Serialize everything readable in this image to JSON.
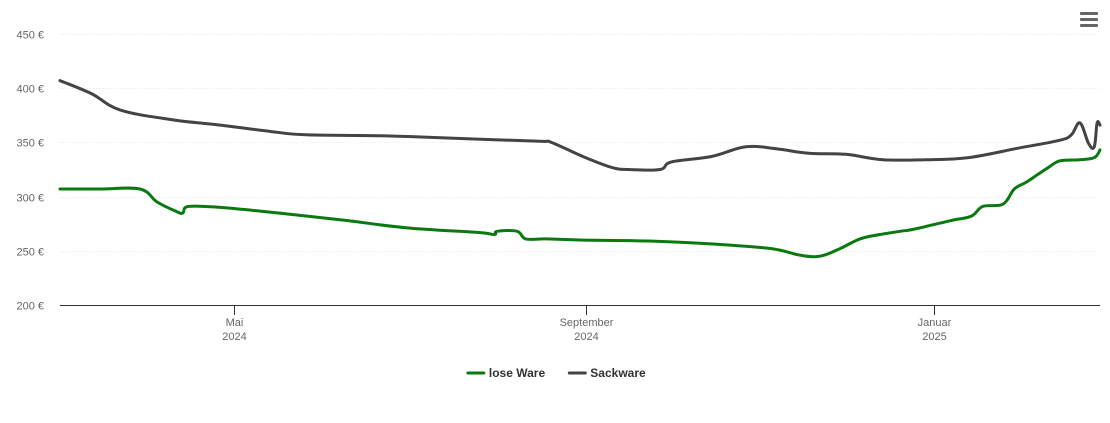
{
  "chart_data": {
    "type": "line",
    "title": "",
    "xlabel": "",
    "ylabel": "",
    "x_range": [
      "2024-03-01",
      "2025-02-28"
    ],
    "ylim": [
      200,
      450
    ],
    "y_ticks": [
      "200 €",
      "250 €",
      "300 €",
      "350 €",
      "400 €",
      "450 €"
    ],
    "y_tick_values": [
      200,
      250,
      300,
      350,
      400,
      450
    ],
    "x_ticks": [
      {
        "date": "2024-05-01",
        "line1": "Mai",
        "line2": "2024"
      },
      {
        "date": "2024-09-01",
        "line1": "September",
        "line2": "2024"
      },
      {
        "date": "2025-01-01",
        "line1": "Januar",
        "line2": "2025"
      }
    ],
    "grid": true,
    "legend_position": "bottom-center",
    "series": [
      {
        "name": "lose Ware",
        "color": "#0a7a10",
        "points": [
          [
            "2024-03-01",
            307
          ],
          [
            "2024-03-15",
            307
          ],
          [
            "2024-03-29",
            307
          ],
          [
            "2024-04-04",
            295
          ],
          [
            "2024-04-11",
            286
          ],
          [
            "2024-04-13",
            285
          ],
          [
            "2024-04-15",
            291
          ],
          [
            "2024-04-26",
            290
          ],
          [
            "2024-05-16",
            285
          ],
          [
            "2024-06-09",
            278
          ],
          [
            "2024-07-01",
            271
          ],
          [
            "2024-07-25",
            267
          ],
          [
            "2024-07-31",
            265
          ],
          [
            "2024-08-01",
            268
          ],
          [
            "2024-08-08",
            268
          ],
          [
            "2024-08-11",
            261
          ],
          [
            "2024-08-18",
            261
          ],
          [
            "2024-08-30",
            260
          ],
          [
            "2024-09-23",
            259
          ],
          [
            "2024-10-17",
            256
          ],
          [
            "2024-11-05",
            252
          ],
          [
            "2024-11-15",
            246
          ],
          [
            "2024-11-22",
            245
          ],
          [
            "2024-11-29",
            252
          ],
          [
            "2024-12-06",
            261
          ],
          [
            "2024-12-13",
            265
          ],
          [
            "2024-12-20",
            268
          ],
          [
            "2024-12-25",
            270
          ],
          [
            "2025-01-07",
            278
          ],
          [
            "2025-01-14",
            282
          ],
          [
            "2025-01-18",
            291
          ],
          [
            "2025-01-25",
            293
          ],
          [
            "2025-01-29",
            307
          ],
          [
            "2025-02-02",
            313
          ],
          [
            "2025-02-06",
            320
          ],
          [
            "2025-02-10",
            327
          ],
          [
            "2025-02-14",
            333
          ],
          [
            "2025-02-21",
            334
          ],
          [
            "2025-02-26",
            336
          ],
          [
            "2025-02-28",
            343
          ]
        ]
      },
      {
        "name": "Sackware",
        "color": "#444444",
        "points": [
          [
            "2024-03-01",
            407
          ],
          [
            "2024-03-12",
            395
          ],
          [
            "2024-03-22",
            380
          ],
          [
            "2024-04-09",
            371
          ],
          [
            "2024-04-26",
            366
          ],
          [
            "2024-05-14",
            360
          ],
          [
            "2024-05-26",
            357
          ],
          [
            "2024-06-23",
            356
          ],
          [
            "2024-07-25",
            353
          ],
          [
            "2024-08-16",
            351
          ],
          [
            "2024-08-20",
            350
          ],
          [
            "2024-08-31",
            337
          ],
          [
            "2024-09-10",
            327
          ],
          [
            "2024-09-16",
            325
          ],
          [
            "2024-09-27",
            325
          ],
          [
            "2024-10-01",
            332
          ],
          [
            "2024-10-15",
            337
          ],
          [
            "2024-10-27",
            346
          ],
          [
            "2024-11-07",
            344
          ],
          [
            "2024-11-18",
            340
          ],
          [
            "2024-12-01",
            339
          ],
          [
            "2024-12-14",
            334
          ],
          [
            "2024-12-29",
            334
          ],
          [
            "2025-01-13",
            336
          ],
          [
            "2025-01-31",
            345
          ],
          [
            "2025-02-14",
            352
          ],
          [
            "2025-02-18",
            357
          ],
          [
            "2025-02-21",
            368
          ],
          [
            "2025-02-24",
            349
          ],
          [
            "2025-02-26",
            346
          ],
          [
            "2025-02-27",
            368
          ],
          [
            "2025-02-28",
            366
          ]
        ]
      }
    ]
  },
  "ui": {
    "menu_icon": "hamburger-menu-icon"
  }
}
